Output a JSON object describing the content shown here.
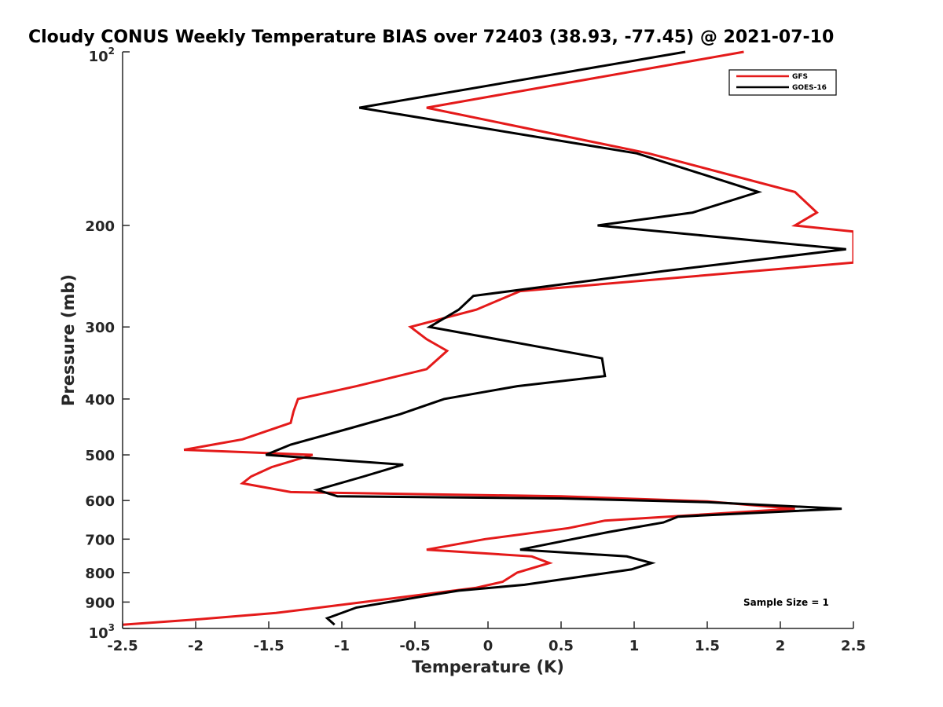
{
  "chart_data": {
    "type": "line",
    "title": "Cloudy CONUS Weekly Temperature BIAS over 72403 (38.93, -77.45) @ 2021-07-10",
    "xlabel": "Temperature (K)",
    "ylabel": "Pressure (mb)",
    "xlim": [
      -2.5,
      2.5
    ],
    "ylim": [
      100,
      1000
    ],
    "y_scale": "log",
    "y_reversed": true,
    "grid": false,
    "legend_position": "top-right",
    "x_ticks": [
      "-2.5",
      "-2",
      "-1.5",
      "-1",
      "-0.5",
      "0",
      "0.5",
      "1",
      "1.5",
      "2",
      "2.5"
    ],
    "x_tick_values": [
      -2.5,
      -2,
      -1.5,
      -1,
      -0.5,
      0,
      0.5,
      1,
      1.5,
      2,
      2.5
    ],
    "y_ticks": [
      {
        "value": 100,
        "base": "10",
        "exp": "2"
      },
      {
        "value": 200,
        "label": "200"
      },
      {
        "value": 300,
        "label": "300"
      },
      {
        "value": 400,
        "label": "400"
      },
      {
        "value": 500,
        "label": "500"
      },
      {
        "value": 600,
        "label": "600"
      },
      {
        "value": 700,
        "label": "700"
      },
      {
        "value": 800,
        "label": "800"
      },
      {
        "value": 900,
        "label": "900"
      },
      {
        "value": 1000,
        "base": "10",
        "exp": "3"
      }
    ],
    "annotation": "Sample Size = 1",
    "series": [
      {
        "name": "GFS",
        "color": "#e41a1a",
        "points": [
          [
            1.75,
            100
          ],
          [
            -0.42,
            125
          ],
          [
            1.1,
            150
          ],
          [
            2.1,
            175
          ],
          [
            2.25,
            190
          ],
          [
            2.1,
            200
          ],
          [
            2.5,
            205
          ],
          [
            2.5,
            232
          ],
          [
            0.22,
            260
          ],
          [
            -0.08,
            280
          ],
          [
            -0.53,
            300
          ],
          [
            -0.42,
            315
          ],
          [
            -0.28,
            330
          ],
          [
            -0.42,
            355
          ],
          [
            -0.9,
            380
          ],
          [
            -1.3,
            400
          ],
          [
            -1.33,
            420
          ],
          [
            -1.35,
            440
          ],
          [
            -1.68,
            470
          ],
          [
            -2.08,
            490
          ],
          [
            -1.2,
            500
          ],
          [
            -1.48,
            525
          ],
          [
            -1.62,
            545
          ],
          [
            -1.68,
            560
          ],
          [
            -1.35,
            580
          ],
          [
            0.5,
            590
          ],
          [
            1.5,
            602
          ],
          [
            2.1,
            620
          ],
          [
            0.8,
            650
          ],
          [
            0.55,
            670
          ],
          [
            -0.02,
            700
          ],
          [
            -0.42,
            730
          ],
          [
            0.3,
            750
          ],
          [
            0.42,
            770
          ],
          [
            0.2,
            800
          ],
          [
            0.1,
            830
          ],
          [
            -0.08,
            850
          ],
          [
            -0.85,
            900
          ],
          [
            -1.45,
            940
          ],
          [
            -2.0,
            965
          ],
          [
            -2.5,
            985
          ]
        ]
      },
      {
        "name": "GOES-16",
        "color": "#000000",
        "points": [
          [
            1.35,
            100
          ],
          [
            -0.88,
            125
          ],
          [
            1.02,
            150
          ],
          [
            1.85,
            175
          ],
          [
            1.4,
            190
          ],
          [
            0.75,
            200
          ],
          [
            2.45,
            220
          ],
          [
            1.2,
            240
          ],
          [
            -0.1,
            265
          ],
          [
            -0.2,
            280
          ],
          [
            -0.4,
            300
          ],
          [
            0.78,
            340
          ],
          [
            0.8,
            365
          ],
          [
            0.2,
            380
          ],
          [
            -0.3,
            400
          ],
          [
            -0.6,
            425
          ],
          [
            -0.95,
            450
          ],
          [
            -1.35,
            480
          ],
          [
            -1.52,
            500
          ],
          [
            -0.58,
            520
          ],
          [
            -0.85,
            545
          ],
          [
            -1.17,
            575
          ],
          [
            -1.03,
            590
          ],
          [
            0.5,
            595
          ],
          [
            1.5,
            604
          ],
          [
            2.42,
            620
          ],
          [
            1.3,
            640
          ],
          [
            1.2,
            655
          ],
          [
            0.83,
            680
          ],
          [
            0.58,
            700
          ],
          [
            0.22,
            730
          ],
          [
            0.95,
            750
          ],
          [
            1.12,
            770
          ],
          [
            0.98,
            790
          ],
          [
            0.25,
            840
          ],
          [
            -0.2,
            860
          ],
          [
            -0.45,
            880
          ],
          [
            -0.9,
            920
          ],
          [
            -1.1,
            960
          ],
          [
            -1.05,
            985
          ]
        ]
      }
    ]
  }
}
